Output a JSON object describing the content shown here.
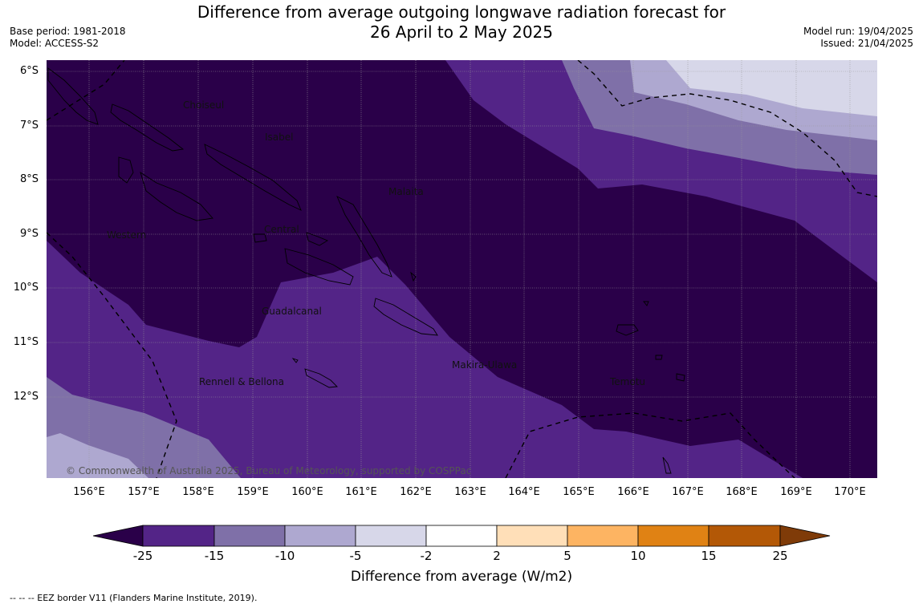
{
  "title_line1": "Difference from average outgoing longwave radiation forecast for",
  "title_line2": "26 April to 2 May 2025",
  "base_period": "Base period: 1981-2018",
  "model": "Model: ACCESS-S2",
  "model_run": "Model run: 19/04/2025",
  "issued": "Issued: 21/04/2025",
  "lat_labels": [
    "6°S",
    "7°S",
    "8°S",
    "9°S",
    "10°S",
    "11°S",
    "12°S"
  ],
  "lon_labels": [
    "156°E",
    "157°E",
    "158°E",
    "159°E",
    "160°E",
    "161°E",
    "162°E",
    "163°E",
    "164°E",
    "165°E",
    "166°E",
    "167°E",
    "168°E",
    "169°E",
    "170°E"
  ],
  "regions": {
    "choiseul": "Choiseul",
    "isabel": "Isabel",
    "malaita": "Malaita",
    "western": "Western",
    "central": "Central",
    "guadalcanal": "Guadalcanal",
    "makira": "Makira-Ulawa",
    "rennell": "Rennell & Bellona",
    "temotu": "Temotu"
  },
  "copyright": "© Commonwealth of Australia 2025, Bureau of Meteorology, supported by COSPPac",
  "colorbar": {
    "ticks": [
      "-25",
      "-15",
      "-10",
      "-5",
      "-2",
      "2",
      "5",
      "10",
      "15",
      "25"
    ],
    "colors": [
      "#2a0049",
      "#532487",
      "#7f70a8",
      "#aea8d0",
      "#d7d7e9",
      "#ffffff",
      "#ffdfb8",
      "#fdb462",
      "#e08214",
      "#b35806",
      "#7f3b08"
    ],
    "label": "Difference from average (W/m2)"
  },
  "footnote": "--  --  -- EEZ border V11 (Flanders Marine Institute, 2019)."
}
